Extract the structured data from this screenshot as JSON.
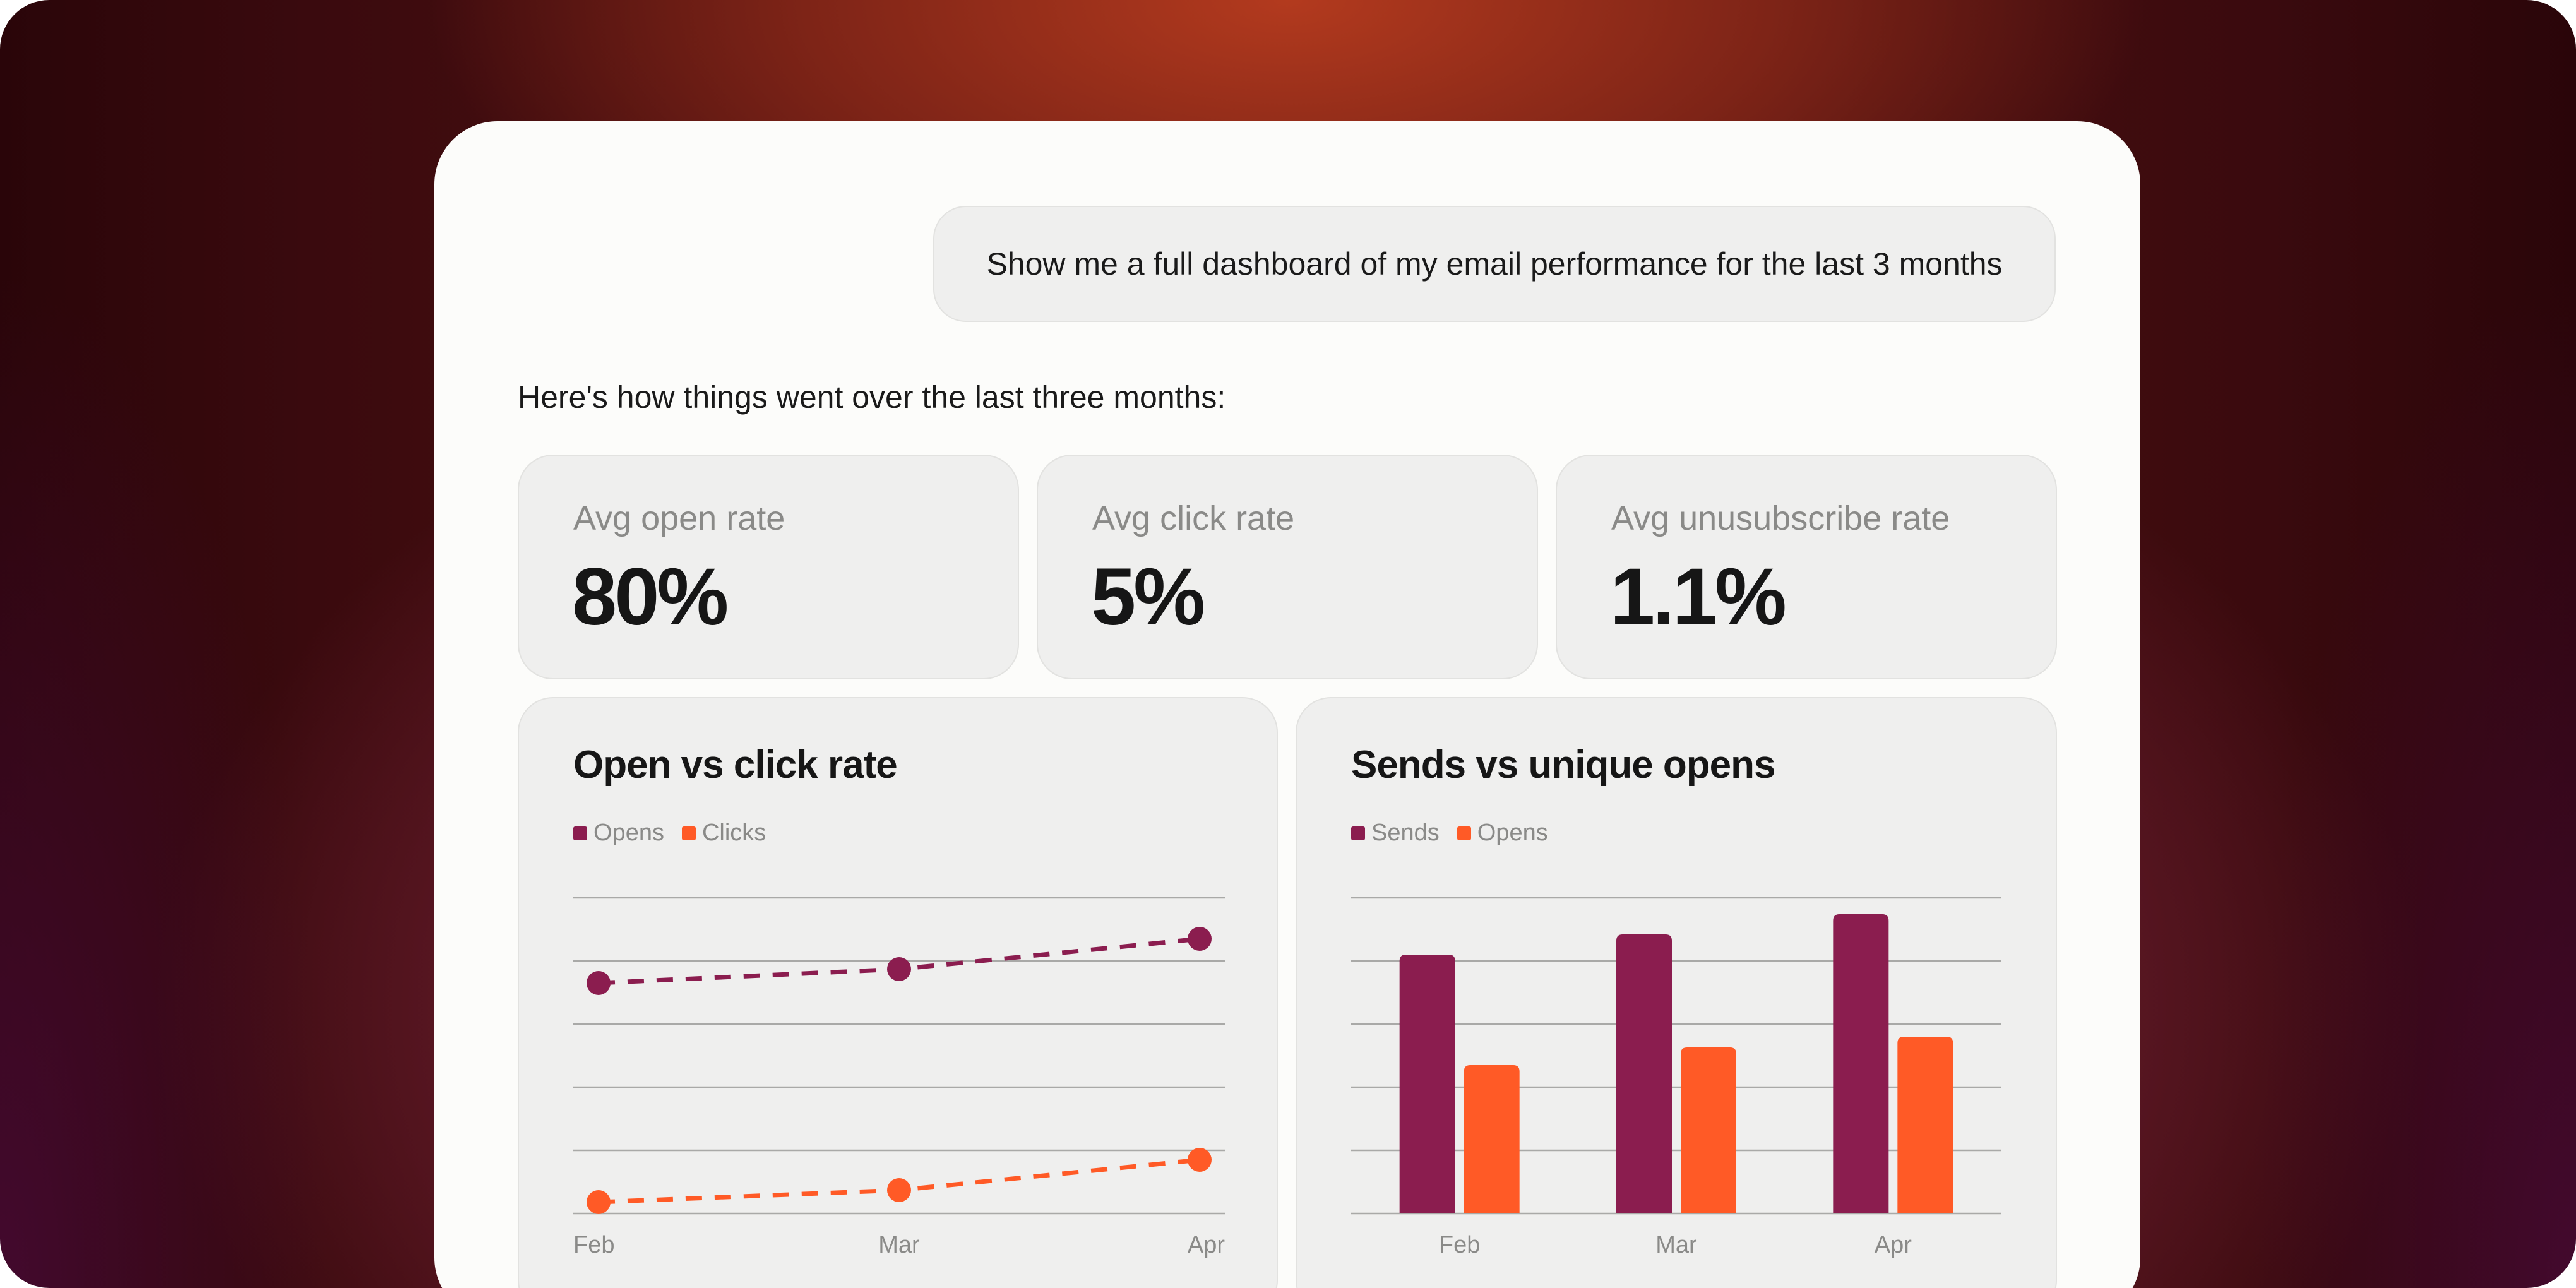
{
  "prompt": "Show me a full dashboard of my email performance for the last 3 months",
  "intro": "Here's how things went over the last three months:",
  "metrics": [
    {
      "label": "Avg open rate",
      "value": "80%"
    },
    {
      "label": "Avg click rate",
      "value": "5%"
    },
    {
      "label": "Avg unusubscribe rate",
      "value": "1.1%"
    }
  ],
  "colors": {
    "series_primary": "#8b1d4f",
    "series_secondary": "#ff5a26",
    "gridline": "#a9a9a7"
  },
  "chart_data": [
    {
      "type": "line",
      "title": "Open vs click rate",
      "categories": [
        "Feb",
        "Mar",
        "Apr"
      ],
      "ylim": [
        0,
        5
      ],
      "grid": true,
      "legend": "top-left",
      "series": [
        {
          "name": "Opens",
          "values": [
            3.65,
            3.87,
            4.35
          ],
          "style": "dashed",
          "color": "#8b1d4f"
        },
        {
          "name": "Clicks",
          "values": [
            0.18,
            0.37,
            0.85
          ],
          "style": "dashed",
          "color": "#ff5a26"
        }
      ]
    },
    {
      "type": "bar",
      "title": "Sends vs unique opens",
      "categories": [
        "Feb",
        "Mar",
        "Apr"
      ],
      "ylim": [
        0,
        5
      ],
      "grid": true,
      "legend": "top-left",
      "series": [
        {
          "name": "Sends",
          "values": [
            4.1,
            4.42,
            4.74
          ],
          "color": "#8b1d4f"
        },
        {
          "name": "Opens",
          "values": [
            2.35,
            2.63,
            2.8
          ],
          "color": "#ff5a26"
        }
      ]
    }
  ]
}
